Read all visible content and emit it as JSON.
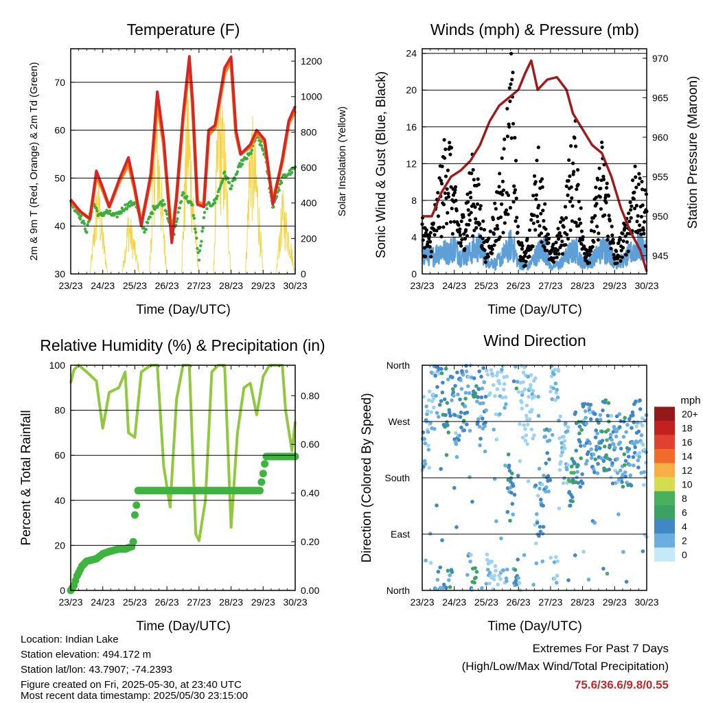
{
  "colors": {
    "temp_2m": "#d62728",
    "temp_9m": "#ff7f0e",
    "dewpoint": "#3cae3c",
    "solar": "#f5d547",
    "wind": "#5d9fd6",
    "gust": "#000000",
    "pressure": "#9c1c1c",
    "rh": "#92c83e",
    "precip": "#3fb33f",
    "speed_scale": [
      "#c6e8f7",
      "#9dd3f0",
      "#6aaede",
      "#4187c6",
      "#3ba266",
      "#4bb05e",
      "#d5dc4f",
      "#f9ae46",
      "#f36a2d",
      "#e0422f",
      "#c4201f",
      "#94191a"
    ]
  },
  "x_ticks": [
    "23/23",
    "24/23",
    "25/23",
    "26/23",
    "27/23",
    "28/23",
    "29/23",
    "30/23"
  ],
  "temperature_panel": {
    "title": "Temperature (F)",
    "ylabel_left": "2m & 9m T (Red, Orange) & 2m Td (Green)",
    "ylabel_right": "Solar Insolation (Yellow)",
    "xlabel": "Time (Day/UTC)",
    "yticks_left": [
      "30",
      "40",
      "50",
      "60",
      "70"
    ],
    "yticks_right": [
      "0",
      "200",
      "400",
      "600",
      "800",
      "1000",
      "1200"
    ]
  },
  "wind_panel": {
    "title": "Winds (mph) & Pressure (mb)",
    "ylabel_left": "Sonic Wind & Gust (Blue, Black)",
    "ylabel_right": "Station Pressure (Maroon)",
    "xlabel": "Time (Day/UTC)",
    "yticks_left": [
      "0",
      "4",
      "8",
      "12",
      "16",
      "20",
      "24"
    ],
    "yticks_right": [
      "945",
      "950",
      "955",
      "960",
      "965",
      "970"
    ]
  },
  "rh_panel": {
    "title": "Relative Humidity (%) & Precipitation (in)",
    "ylabel_left": "Percent & Total Rainfall",
    "xlabel": "Time (Day/UTC)",
    "yticks_left": [
      "0",
      "20",
      "40",
      "60",
      "80",
      "100"
    ],
    "yticks_right": [
      "0.00",
      "0.20",
      "0.40",
      "0.60",
      "0.80"
    ]
  },
  "direction_panel": {
    "title": "Wind Direction",
    "ylabel_left": "Direction (Colored By Speed)",
    "xlabel": "Time (Day/UTC)",
    "yticks_left": [
      "North",
      "East",
      "South",
      "West",
      "North"
    ],
    "legend_title": "mph",
    "legend_labels": [
      "0",
      "2",
      "4",
      "6",
      "8",
      "10",
      "12",
      "14",
      "16",
      "18",
      "20+"
    ]
  },
  "info": {
    "location": "Location: Indian Lake",
    "elevation": "Station elevation: 494.172 m",
    "latlon": "Station lat/lon: 43.7907; -74.2393",
    "created": "Figure created on Fri, 2025-05-30, at 23:40 UTC",
    "recent": "Most recent data timestamp: 2025/05/30 23:15:00"
  },
  "extremes": {
    "title": "Extremes For Past 7 Days",
    "subtitle": "(High/Low/Max Wind/Total Precipitation)",
    "values": "75.6/36.6/9.8/0.55"
  },
  "chart_data": [
    {
      "type": "line",
      "title": "Temperature (F)",
      "xlabel": "Time (Day/UTC)",
      "ylabel": "2m & 9m T (Red, Orange) & 2m Td (Green)",
      "y2label": "Solar Insolation (Yellow)",
      "x_unit": "days since 23/23",
      "xlim": [
        0,
        7
      ],
      "ylim": [
        30,
        77
      ],
      "y2lim": [
        0,
        1270
      ],
      "series": [
        {
          "name": "2m T",
          "axis": "left",
          "color": "#d62728",
          "x": [
            0,
            0.3,
            0.6,
            0.8,
            1.0,
            1.2,
            1.5,
            1.8,
            2.0,
            2.2,
            2.5,
            2.7,
            2.9,
            3.15,
            3.3,
            3.5,
            3.7,
            3.8,
            3.95,
            4.15,
            4.3,
            4.5,
            4.8,
            5.0,
            5.15,
            5.3,
            5.6,
            5.8,
            6.05,
            6.3,
            6.6,
            6.8,
            7.0
          ],
          "y": [
            45.5,
            43,
            41.5,
            51.5,
            48,
            44,
            49.5,
            54.3,
            48,
            40,
            51,
            68,
            58,
            36.5,
            46,
            63,
            75.4,
            66,
            44.5,
            44,
            60,
            61,
            73,
            75.3,
            60,
            55,
            57,
            60,
            58,
            44.5,
            54,
            62,
            65
          ]
        },
        {
          "name": "9m T",
          "axis": "left",
          "color": "#ff7f0e",
          "x": [
            0,
            0.3,
            0.6,
            0.8,
            1.0,
            1.2,
            1.5,
            1.8,
            2.0,
            2.2,
            2.5,
            2.7,
            2.9,
            3.15,
            3.3,
            3.5,
            3.7,
            3.8,
            3.95,
            4.15,
            4.3,
            4.5,
            4.8,
            5.0,
            5.15,
            5.3,
            5.6,
            5.8,
            6.05,
            6.3,
            6.6,
            6.8,
            7.0
          ],
          "y": [
            45,
            43,
            41.5,
            50.5,
            47.5,
            44,
            49,
            53,
            47.5,
            40.5,
            50,
            66,
            57,
            37.5,
            46,
            62,
            74,
            65.5,
            45,
            44.5,
            59,
            60.5,
            72,
            74.5,
            59.5,
            55,
            56.5,
            59.5,
            57.5,
            45,
            53.5,
            61.5,
            64
          ]
        },
        {
          "name": "2m Td",
          "axis": "left",
          "color": "#3cae3c",
          "x": [
            0,
            0.3,
            0.5,
            0.7,
            0.9,
            1.1,
            1.4,
            1.7,
            2.0,
            2.3,
            2.6,
            2.9,
            3.2,
            3.5,
            3.8,
            4.0,
            4.2,
            4.5,
            4.8,
            5.0,
            5.3,
            5.6,
            5.8,
            6.05,
            6.3,
            6.6,
            6.8,
            7.0
          ],
          "y": [
            45,
            42,
            39,
            45,
            42,
            43,
            42,
            44,
            45,
            39,
            44,
            45,
            38,
            47,
            44,
            33,
            44,
            45,
            51,
            48,
            53,
            55,
            59,
            55,
            44,
            50,
            51,
            52
          ]
        },
        {
          "name": "Solar Insolation",
          "axis": "right",
          "color": "#f5d547",
          "x": [
            0.6,
            0.85,
            1.0,
            1.15,
            1.6,
            1.8,
            2.0,
            2.15,
            2.45,
            2.65,
            2.8,
            3.0,
            3.45,
            3.65,
            3.8,
            4.0,
            4.45,
            4.6,
            4.8,
            5.0,
            5.45,
            5.6,
            5.8,
            6.0,
            6.4,
            6.6,
            6.8,
            7.0
          ],
          "y": [
            0,
            620,
            300,
            0,
            0,
            400,
            200,
            0,
            0,
            1120,
            700,
            0,
            0,
            1210,
            600,
            0,
            0,
            1140,
            900,
            0,
            0,
            1000,
            700,
            0,
            0,
            500,
            300,
            0
          ]
        }
      ]
    },
    {
      "type": "line",
      "title": "Winds (mph) & Pressure (mb)",
      "xlabel": "Time (Day/UTC)",
      "ylabel": "Sonic Wind & Gust (Blue, Black)",
      "y2label": "Station Pressure (Maroon)",
      "x_unit": "days since 23/23",
      "xlim": [
        0,
        7
      ],
      "ylim": [
        0,
        24.5
      ],
      "y2lim": [
        942.7,
        971.2
      ],
      "series": [
        {
          "name": "Station Pressure",
          "axis": "right",
          "color": "#9c1c1c",
          "x": [
            0,
            0.3,
            0.6,
            0.9,
            1.2,
            1.5,
            1.8,
            2.1,
            2.4,
            2.7,
            3.0,
            3.2,
            3.4,
            3.6,
            3.9,
            4.2,
            4.5,
            4.7,
            5.0,
            5.3,
            5.6,
            5.9,
            6.2,
            6.5,
            6.8,
            7.0
          ],
          "y": [
            950,
            950,
            953,
            955,
            955.8,
            957,
            959,
            962,
            964,
            965,
            966,
            968,
            969.7,
            966,
            967.3,
            967.6,
            966,
            963,
            961,
            959,
            958,
            955,
            951,
            948,
            945.7,
            943
          ]
        },
        {
          "name": "Sonic Wind",
          "axis": "left",
          "color": "#5d9fd6",
          "x": [
            0,
            0.3,
            0.6,
            0.8,
            1.0,
            1.2,
            1.5,
            1.8,
            2.0,
            2.3,
            2.6,
            2.8,
            3.0,
            3.3,
            3.6,
            3.8,
            4.0,
            4.3,
            4.6,
            4.8,
            5.0,
            5.3,
            5.6,
            5.8,
            6.0,
            6.3,
            6.6,
            6.8,
            7.0
          ],
          "y": [
            3,
            2.5,
            3.5,
            3,
            4,
            2.5,
            3,
            4,
            2,
            1.5,
            3,
            4.5,
            1.5,
            1,
            3,
            4,
            1,
            1.5,
            3,
            3.5,
            1.5,
            2,
            3.5,
            4,
            1.5,
            2,
            3.5,
            4,
            3
          ]
        },
        {
          "name": "Gust",
          "axis": "left",
          "color": "#000000",
          "x": [
            0,
            0.2,
            0.4,
            0.6,
            0.8,
            1.0,
            1.2,
            1.4,
            1.6,
            1.8,
            2.0,
            2.2,
            2.4,
            2.6,
            2.8,
            3.0,
            3.2,
            3.4,
            3.6,
            3.8,
            4.0,
            4.2,
            4.4,
            4.6,
            4.8,
            5.0,
            5.2,
            5.4,
            5.6,
            5.8,
            6.0,
            6.2,
            6.4,
            6.6,
            6.8,
            7.0
          ],
          "y": [
            6,
            4,
            7,
            11,
            16,
            9,
            5,
            9,
            12,
            8,
            3,
            6,
            10,
            14,
            22,
            4,
            2,
            6,
            13,
            8,
            2,
            4,
            6,
            12,
            15,
            4,
            3,
            8,
            13,
            9,
            2,
            4,
            6,
            12,
            9,
            8
          ]
        }
      ]
    },
    {
      "type": "line",
      "title": "Relative Humidity (%) & Precipitation (in)",
      "xlabel": "Time (Day/UTC)",
      "ylabel": "Percent & Total Rainfall",
      "x_unit": "days since 23/23",
      "xlim": [
        0,
        7
      ],
      "ylim": [
        0,
        100
      ],
      "y2lim": [
        0,
        0.925
      ],
      "series": [
        {
          "name": "Relative Humidity",
          "axis": "left",
          "color": "#92c83e",
          "x": [
            0,
            0.1,
            0.25,
            0.5,
            0.8,
            1.0,
            1.2,
            1.5,
            1.7,
            1.8,
            2.0,
            2.2,
            2.5,
            2.7,
            2.9,
            3.1,
            3.3,
            3.5,
            3.7,
            3.9,
            4.0,
            4.2,
            4.4,
            4.6,
            4.8,
            5.0,
            5.2,
            5.4,
            5.6,
            5.8,
            6.0,
            6.2,
            6.4,
            6.6,
            6.7,
            6.9,
            7.0
          ],
          "y": [
            92,
            98,
            100,
            97,
            93,
            72,
            88,
            90,
            97,
            70,
            68,
            97,
            100,
            100,
            55,
            37,
            85,
            100,
            100,
            25,
            22,
            40,
            97,
            100,
            100,
            28,
            70,
            90,
            92,
            78,
            95,
            100,
            100,
            100,
            80,
            62,
            75
          ]
        },
        {
          "name": "Total Rainfall",
          "axis": "right",
          "color": "#3fb33f",
          "x": [
            0,
            0.1,
            0.2,
            0.35,
            0.5,
            0.8,
            1.0,
            1.2,
            1.5,
            1.7,
            1.9,
            1.95,
            2.0,
            2.05,
            2.1,
            2.5,
            3.0,
            3.5,
            4.0,
            4.5,
            5.0,
            5.5,
            5.9,
            6.0,
            6.05,
            6.1,
            6.5,
            7.0
          ],
          "y": [
            0,
            0.02,
            0.06,
            0.1,
            0.12,
            0.13,
            0.15,
            0.16,
            0.17,
            0.17,
            0.18,
            0.2,
            0.31,
            0.35,
            0.41,
            0.41,
            0.41,
            0.41,
            0.41,
            0.41,
            0.41,
            0.41,
            0.41,
            0.48,
            0.52,
            0.55,
            0.55,
            0.55
          ]
        }
      ]
    },
    {
      "type": "scatter",
      "title": "Wind Direction",
      "xlabel": "Time (Day/UTC)",
      "ylabel": "Direction (Colored By Speed)",
      "x_unit": "days since 23/23",
      "xlim": [
        0,
        7
      ],
      "yticks": [
        "North",
        "East",
        "South",
        "West",
        "North"
      ],
      "color_scale_mph": [
        "0",
        "2",
        "4",
        "6",
        "8",
        "10",
        "12",
        "14",
        "16",
        "18",
        "20+"
      ],
      "points": [
        {
          "x": 0.1,
          "dir": "WSW",
          "speed": 3
        },
        {
          "x": 0.3,
          "dir": "NW",
          "speed": 2
        },
        {
          "x": 0.5,
          "dir": "NNW",
          "speed": 4
        },
        {
          "x": 0.7,
          "dir": "NW",
          "speed": 6
        },
        {
          "x": 0.9,
          "dir": "NNW",
          "speed": 5
        },
        {
          "x": 1.1,
          "dir": "WNW",
          "speed": 4
        },
        {
          "x": 1.3,
          "dir": "NW",
          "speed": 5
        },
        {
          "x": 1.5,
          "dir": "N",
          "speed": 3
        },
        {
          "x": 1.6,
          "dir": "NNW",
          "speed": 6
        },
        {
          "x": 1.8,
          "dir": "NW",
          "speed": 4
        },
        {
          "x": 2.2,
          "dir": "N",
          "speed": 1
        },
        {
          "x": 2.5,
          "dir": "NNW",
          "speed": 2
        },
        {
          "x": 2.8,
          "dir": "SSE",
          "speed": 5
        },
        {
          "x": 2.9,
          "dir": "NNE",
          "speed": 6
        },
        {
          "x": 3.1,
          "dir": "NW",
          "speed": 1
        },
        {
          "x": 3.3,
          "dir": "WNW",
          "speed": 1
        },
        {
          "x": 3.7,
          "dir": "SE",
          "speed": 4
        },
        {
          "x": 3.9,
          "dir": "SSW",
          "speed": 5
        },
        {
          "x": 4.1,
          "dir": "N",
          "speed": 2
        },
        {
          "x": 4.4,
          "dir": "SW",
          "speed": 2
        },
        {
          "x": 4.7,
          "dir": "S",
          "speed": 7
        },
        {
          "x": 4.8,
          "dir": "SW",
          "speed": 6
        },
        {
          "x": 5.2,
          "dir": "WSW",
          "speed": 4
        },
        {
          "x": 5.5,
          "dir": "SW",
          "speed": 5
        },
        {
          "x": 5.7,
          "dir": "WSW",
          "speed": 7
        },
        {
          "x": 6.0,
          "dir": "SW",
          "speed": 4
        },
        {
          "x": 6.4,
          "dir": "SW",
          "speed": 5
        },
        {
          "x": 6.7,
          "dir": "WSW",
          "speed": 4
        },
        {
          "x": 6.9,
          "dir": "SW",
          "speed": 3
        }
      ]
    }
  ]
}
